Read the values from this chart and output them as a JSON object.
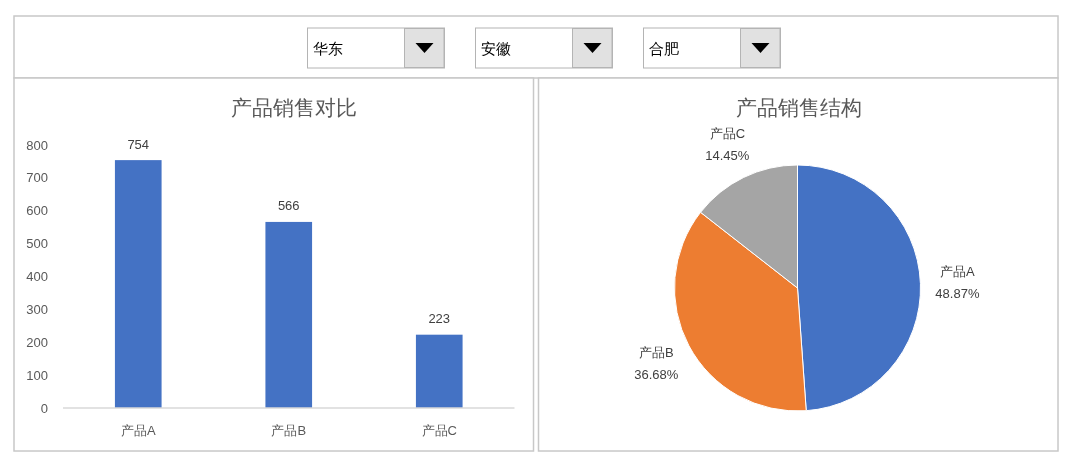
{
  "chart_data": [
    {
      "type": "other",
      "annotations": [
        "华东",
        "安徽",
        "合肥"
      ]
    },
    {
      "type": "bar",
      "title": "产品销售对比",
      "categories": [
        "产品A",
        "产品B",
        "产品C"
      ],
      "values": [
        754,
        566,
        223
      ],
      "color": "#4472c4",
      "ylim": [
        0,
        800
      ],
      "yticks": [
        0,
        100,
        200,
        300,
        400,
        500,
        600,
        700,
        800
      ],
      "data_labels": true
    },
    {
      "type": "pie",
      "title": "产品销售结构",
      "categories": [
        "产品A",
        "产品B",
        "产品C"
      ],
      "values": [
        48.87,
        36.68,
        14.45
      ],
      "colors": [
        "#4472c4",
        "#ed7d31",
        "#a5a5a5"
      ],
      "value_labels": [
        "48.87%",
        "36.68%",
        "14.45%"
      ]
    }
  ]
}
